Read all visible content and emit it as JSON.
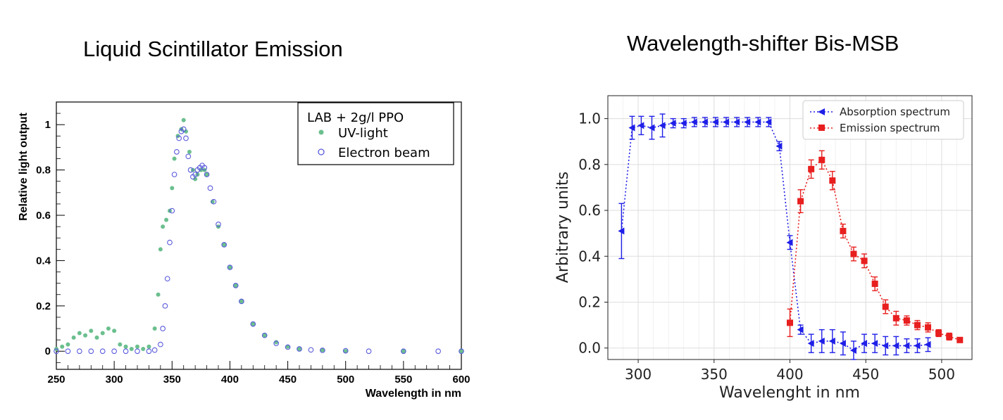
{
  "chart_data": [
    {
      "type": "scatter",
      "title": "Liquid Scintillator Emission",
      "xlabel": "Wavelength in nm",
      "ylabel": "Relative light output",
      "xlim": [
        250,
        600
      ],
      "ylim": [
        -0.08,
        1.1
      ],
      "xticks": [
        "250",
        "300",
        "350",
        "400",
        "450",
        "500",
        "550",
        "600"
      ],
      "yticks": [
        "0",
        "0.2",
        "0.4",
        "0.6",
        "0.8",
        "1"
      ],
      "grid": true,
      "legend": {
        "placement": "top-right",
        "title": "LAB + 2g/l PPO",
        "entries": [
          "UV-light",
          "Electron beam"
        ]
      },
      "series": [
        {
          "name": "UV-light",
          "color": "#6bbf8e",
          "marker": "filled-circle",
          "x": [
            250,
            255,
            260,
            265,
            270,
            275,
            280,
            285,
            290,
            295,
            300,
            305,
            310,
            315,
            320,
            325,
            330,
            335,
            338,
            340,
            342,
            345,
            348,
            350,
            352,
            355,
            358,
            360,
            362,
            365,
            368,
            370,
            372,
            375,
            378,
            380,
            385,
            390,
            395,
            400,
            405,
            410,
            420,
            430,
            440,
            450,
            460,
            480,
            500,
            550,
            600
          ],
          "values": [
            0.01,
            0.02,
            0.03,
            0.06,
            0.08,
            0.07,
            0.09,
            0.06,
            0.08,
            0.1,
            0.09,
            0.03,
            0.02,
            0.01,
            0.02,
            0.01,
            0.02,
            0.1,
            0.25,
            0.45,
            0.55,
            0.58,
            0.62,
            0.72,
            0.85,
            0.95,
            0.98,
            1.02,
            0.97,
            0.88,
            0.8,
            0.76,
            0.78,
            0.8,
            0.8,
            0.78,
            0.66,
            0.55,
            0.47,
            0.37,
            0.29,
            0.22,
            0.12,
            0.07,
            0.04,
            0.02,
            0.01,
            0.005,
            0.0,
            0.0,
            0.0
          ]
        },
        {
          "name": "Electron beam",
          "color": "#5a5adc",
          "marker": "open-circle",
          "x": [
            250,
            260,
            270,
            280,
            290,
            300,
            310,
            320,
            330,
            335,
            340,
            342,
            344,
            346,
            348,
            350,
            352,
            354,
            356,
            358,
            360,
            362,
            364,
            366,
            368,
            370,
            372,
            374,
            376,
            378,
            380,
            383,
            386,
            390,
            395,
            400,
            405,
            410,
            420,
            430,
            440,
            450,
            460,
            470,
            480,
            500,
            520,
            550,
            580,
            600
          ],
          "values": [
            0.0,
            0.0,
            0.0,
            0.0,
            0.0,
            0.0,
            0.0,
            0.0,
            0.0,
            0.005,
            0.03,
            0.1,
            0.2,
            0.32,
            0.48,
            0.62,
            0.78,
            0.88,
            0.94,
            0.97,
            0.98,
            0.94,
            0.86,
            0.8,
            0.77,
            0.78,
            0.8,
            0.81,
            0.82,
            0.81,
            0.78,
            0.72,
            0.66,
            0.56,
            0.47,
            0.37,
            0.29,
            0.22,
            0.12,
            0.07,
            0.035,
            0.018,
            0.01,
            0.006,
            0.004,
            0.002,
            0.0,
            0.0,
            0.0,
            0.0
          ]
        }
      ]
    },
    {
      "type": "line",
      "title": "Wavelength-shifter Bis-MSB",
      "xlabel": "Wavelenght in nm",
      "ylabel": "Arbitrary units",
      "xlim": [
        280,
        520
      ],
      "ylim": [
        -0.05,
        1.1
      ],
      "xticks": [
        "300",
        "350",
        "400",
        "450",
        "500"
      ],
      "yticks": [
        "0.0",
        "0.2",
        "0.4",
        "0.6",
        "0.8",
        "1.0"
      ],
      "grid": true,
      "legend": {
        "placement": "top-right"
      },
      "series": [
        {
          "name": "Absorption spectrum",
          "color": "#1f1fe8",
          "marker": "left-triangle",
          "x": [
            289,
            296,
            302,
            309,
            316,
            323,
            330,
            337,
            344,
            351,
            358,
            365,
            372,
            379,
            386,
            393,
            400,
            407,
            414,
            421,
            428,
            435,
            442,
            449,
            456,
            463,
            470,
            477,
            484,
            491
          ],
          "values": [
            0.51,
            0.96,
            0.97,
            0.96,
            0.97,
            0.98,
            0.98,
            0.985,
            0.985,
            0.985,
            0.985,
            0.985,
            0.985,
            0.985,
            0.985,
            0.88,
            0.46,
            0.08,
            0.02,
            0.03,
            0.03,
            0.02,
            -0.01,
            0.02,
            0.02,
            0.01,
            0.01,
            0.01,
            0.01,
            0.015
          ],
          "errors": [
            0.12,
            0.05,
            0.04,
            0.05,
            0.05,
            0.02,
            0.02,
            0.02,
            0.02,
            0.02,
            0.02,
            0.02,
            0.02,
            0.02,
            0.02,
            0.02,
            0.03,
            0.02,
            0.04,
            0.05,
            0.05,
            0.05,
            0.04,
            0.04,
            0.04,
            0.04,
            0.04,
            0.03,
            0.03,
            0.03
          ]
        },
        {
          "name": "Emission spectrum",
          "color": "#e81f1f",
          "marker": "square",
          "x": [
            400,
            407,
            414,
            421,
            428,
            435,
            442,
            449,
            456,
            463,
            470,
            477,
            484,
            491,
            498,
            505,
            512
          ],
          "values": [
            0.11,
            0.64,
            0.78,
            0.82,
            0.73,
            0.51,
            0.41,
            0.38,
            0.28,
            0.18,
            0.13,
            0.12,
            0.1,
            0.09,
            0.065,
            0.05,
            0.035
          ],
          "errors": [
            0.06,
            0.05,
            0.04,
            0.04,
            0.04,
            0.03,
            0.03,
            0.03,
            0.03,
            0.03,
            0.03,
            0.02,
            0.02,
            0.02,
            0.015,
            0.015,
            0.01
          ]
        }
      ]
    }
  ]
}
